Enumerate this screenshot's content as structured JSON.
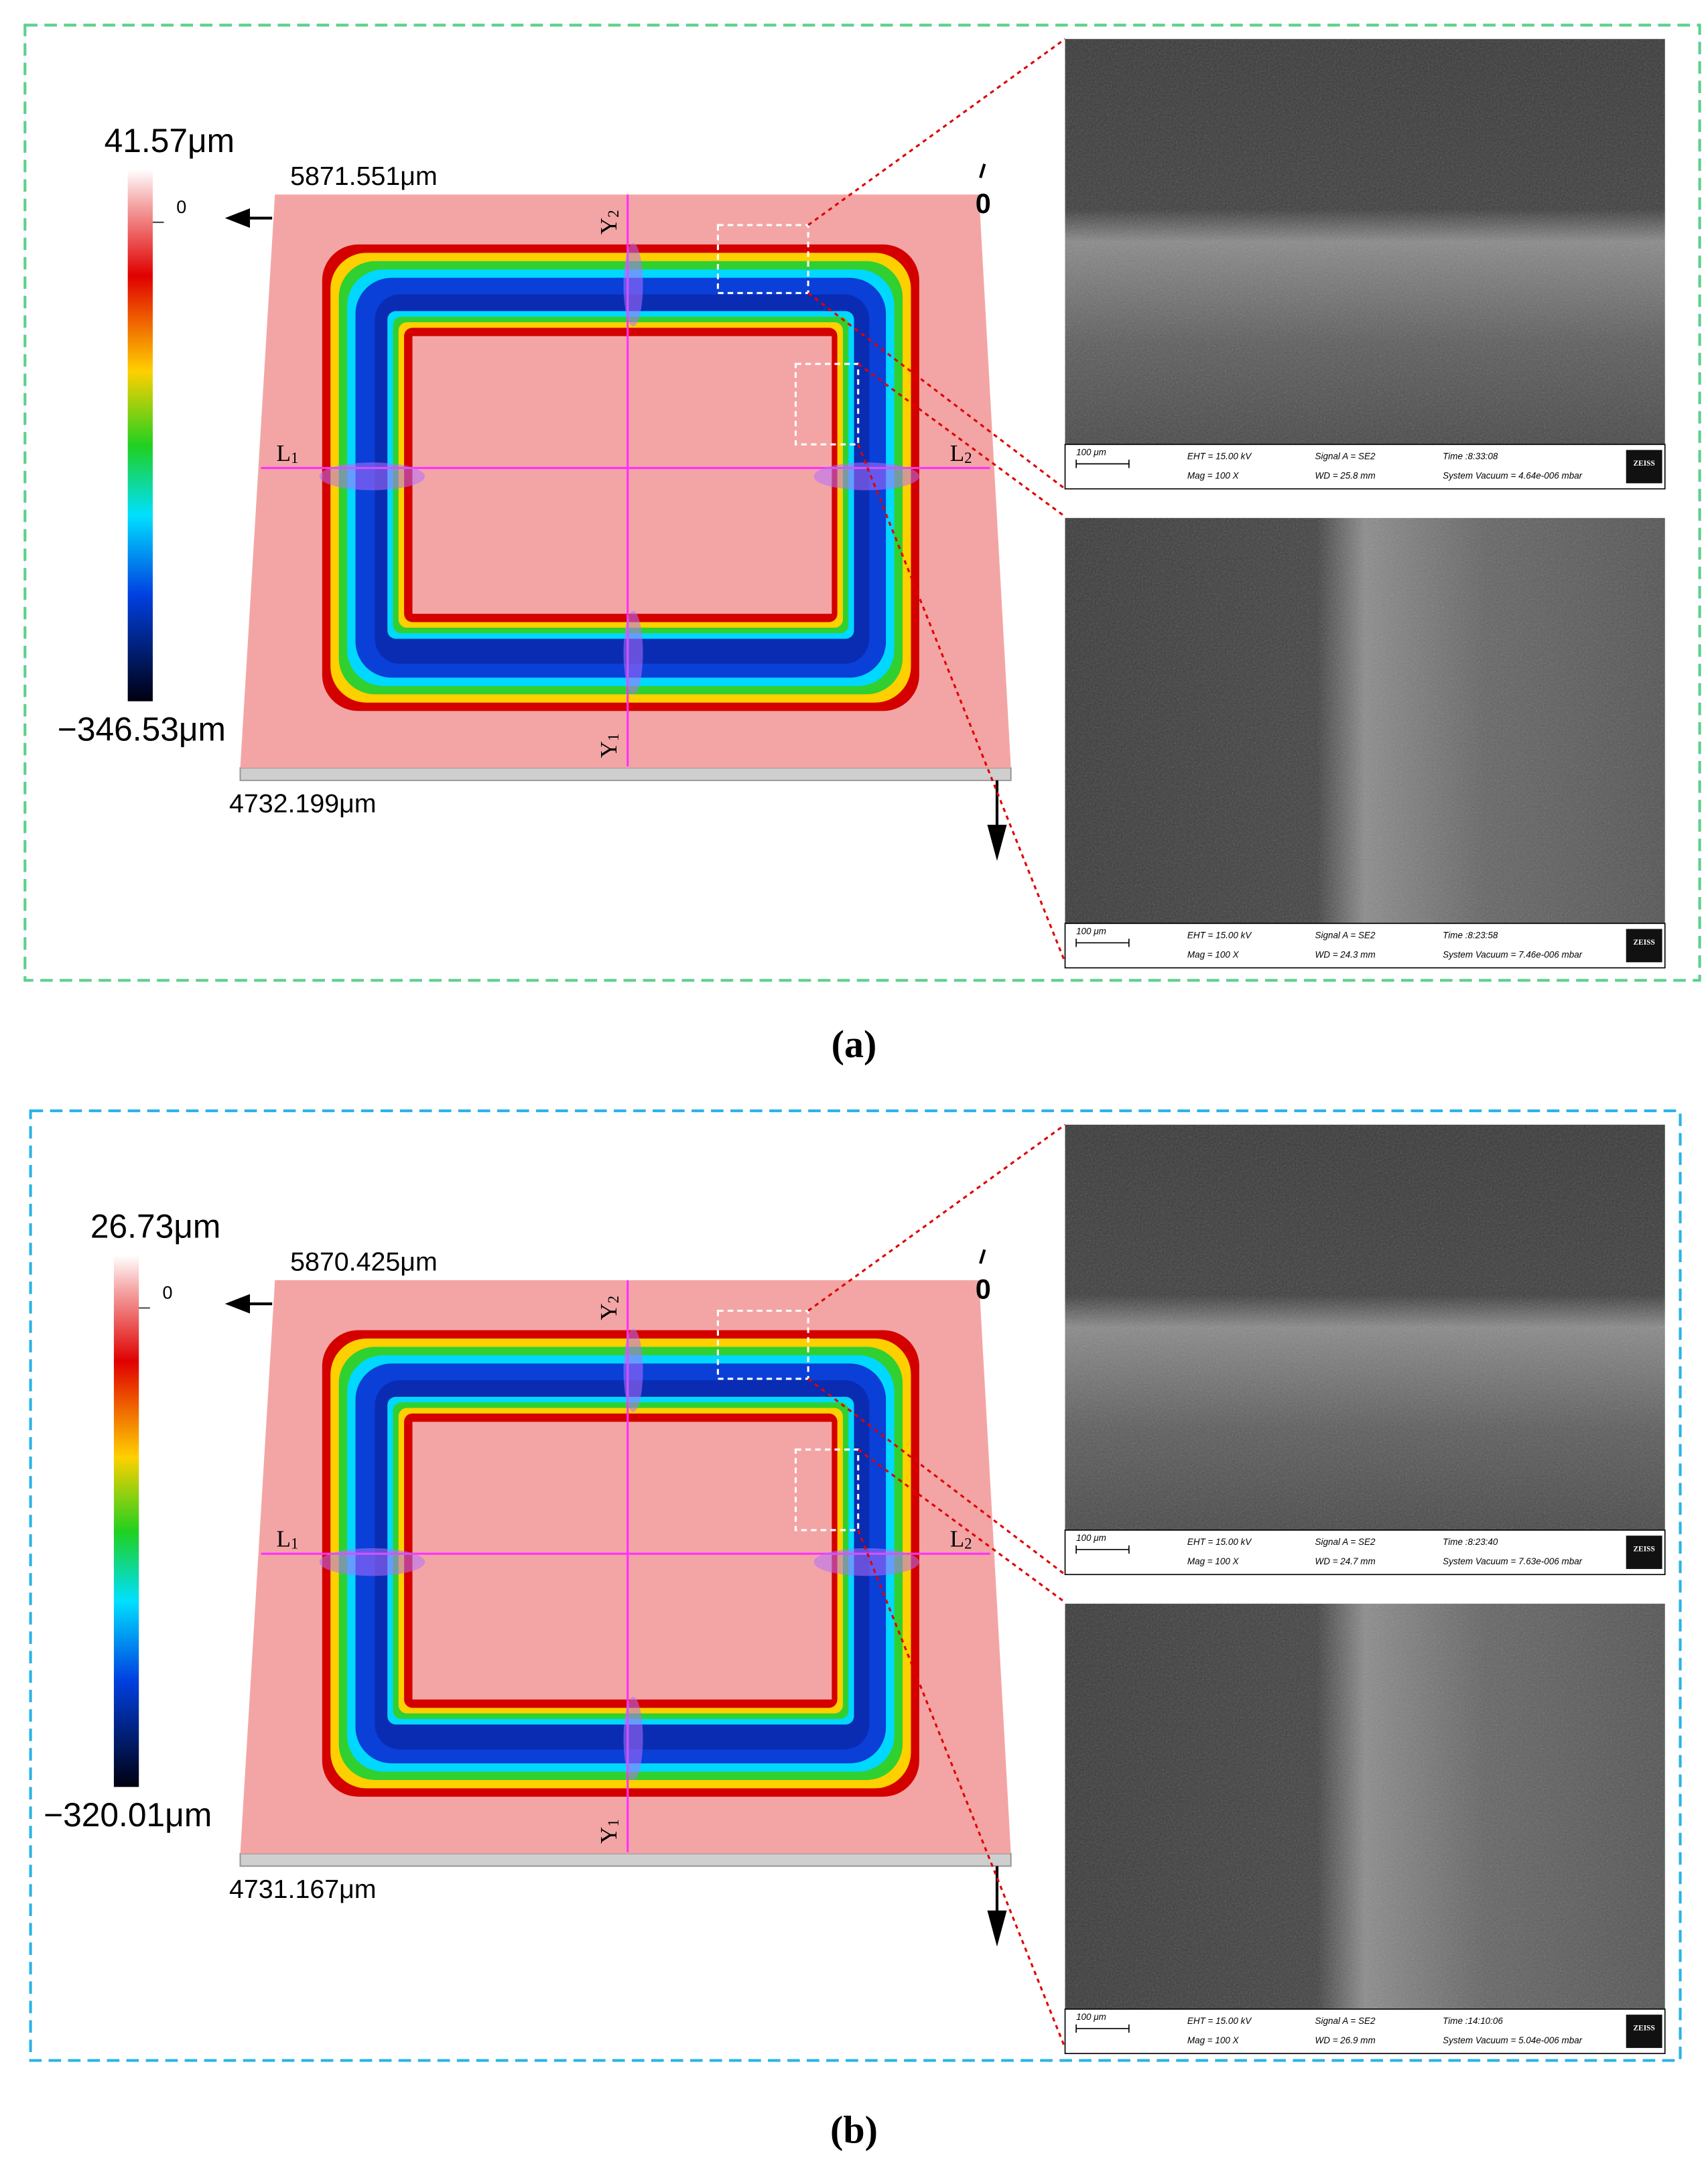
{
  "panels": [
    {
      "label": "(a)",
      "colorbar": {
        "max": "41.57μm",
        "zero": "0",
        "min": "−346.53μm"
      },
      "width_label": "5871.551μm",
      "length_label": "4732.199μm",
      "corner_label": "0",
      "axes": [
        {
          "letter": "L",
          "sub": "1"
        },
        {
          "letter": "L",
          "sub": "2"
        },
        {
          "letter": "Y",
          "sub": "2"
        },
        {
          "letter": "Y",
          "sub": "1"
        }
      ],
      "sem": [
        {
          "scale": "100 μm",
          "eht": "EHT = 15.00 kV",
          "mag": "Mag =   100 X",
          "signal": "Signal A = SE2",
          "wd": "WD = 25.8 mm",
          "time": "Time :8:33:08",
          "vacuum": "System Vacuum = 4.64e-006 mbar",
          "logo": "ZEISS"
        },
        {
          "scale": "100 μm",
          "eht": "EHT = 15.00 kV",
          "mag": "Mag =   100 X",
          "signal": "Signal A = SE2",
          "wd": "WD = 24.3 mm",
          "time": "Time :8:23:58",
          "vacuum": "System Vacuum = 7.46e-006 mbar",
          "logo": "ZEISS"
        }
      ]
    },
    {
      "label": "(b)",
      "colorbar": {
        "max": "26.73μm",
        "zero": "0",
        "min": "−320.01μm"
      },
      "width_label": "5870.425μm",
      "length_label": "4731.167μm",
      "corner_label": "0",
      "axes": [
        {
          "letter": "L",
          "sub": "1"
        },
        {
          "letter": "L",
          "sub": "2"
        },
        {
          "letter": "Y",
          "sub": "2"
        },
        {
          "letter": "Y",
          "sub": "1"
        }
      ],
      "sem": [
        {
          "scale": "100 μm",
          "eht": "EHT = 15.00 kV",
          "mag": "Mag =   100 X",
          "signal": "Signal A = SE2",
          "wd": "WD = 24.7 mm",
          "time": "Time :8:23:40",
          "vacuum": "System Vacuum = 7.63e-006 mbar",
          "logo": "ZEISS"
        },
        {
          "scale": "100 μm",
          "eht": "EHT = 15.00 kV",
          "mag": "Mag =   100 X",
          "signal": "Signal A = SE2",
          "wd": "WD = 26.9 mm",
          "time": "Time :14:10:06",
          "vacuum": "System Vacuum = 5.04e-006 mbar",
          "logo": "ZEISS"
        }
      ]
    }
  ]
}
